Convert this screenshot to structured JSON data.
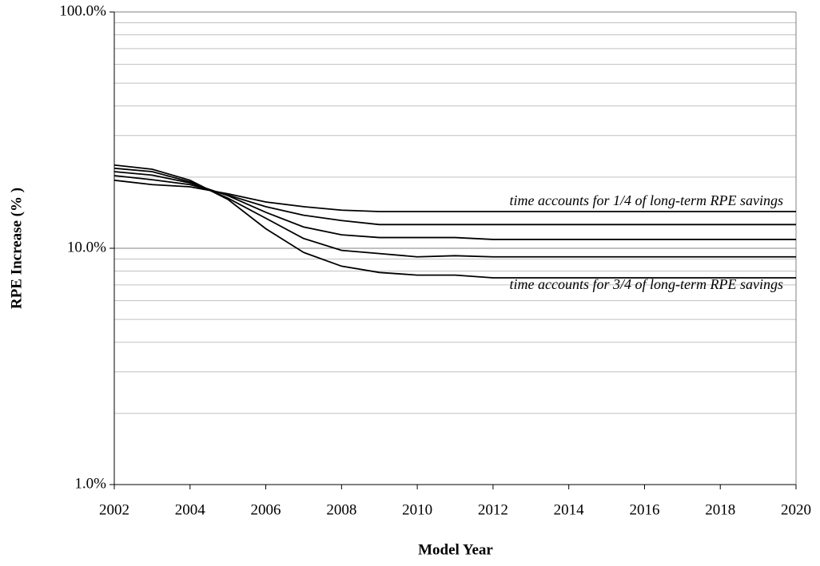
{
  "chart_data": {
    "type": "line",
    "x_label": "Model Year",
    "y_label": "RPE Increase (% )",
    "x": [
      2002,
      2003,
      2004,
      2005,
      2006,
      2007,
      2008,
      2009,
      2010,
      2011,
      2012,
      2013,
      2014,
      2015,
      2016,
      2017,
      2018,
      2019,
      2020
    ],
    "series": [
      {
        "color": "#000000",
        "values": [
          19.4,
          18.6,
          18.2,
          17.0,
          15.7,
          15.0,
          14.5,
          14.3,
          14.3,
          14.3,
          14.3,
          14.3,
          14.3,
          14.3,
          14.3,
          14.3,
          14.3,
          14.3,
          14.3
        ]
      },
      {
        "color": "#000000",
        "values": [
          20.3,
          19.5,
          18.6,
          16.8,
          15.0,
          13.8,
          13.1,
          12.6,
          12.6,
          12.6,
          12.6,
          12.6,
          12.6,
          12.6,
          12.6,
          12.6,
          12.6,
          12.6,
          12.6
        ]
      },
      {
        "color": "#000000",
        "values": [
          21.1,
          20.4,
          18.9,
          16.7,
          14.2,
          12.3,
          11.4,
          11.1,
          11.1,
          11.1,
          10.9,
          10.9,
          10.9,
          10.9,
          10.9,
          10.9,
          10.9,
          10.9,
          10.9
        ]
      },
      {
        "color": "#000000",
        "values": [
          21.8,
          21.1,
          19.1,
          16.3,
          13.4,
          11.0,
          9.8,
          9.5,
          9.2,
          9.3,
          9.2,
          9.2,
          9.2,
          9.2,
          9.2,
          9.2,
          9.2,
          9.2,
          9.2
        ]
      },
      {
        "color": "#000000",
        "values": [
          22.5,
          21.6,
          19.4,
          16.1,
          12.1,
          9.6,
          8.4,
          7.9,
          7.7,
          7.7,
          7.5,
          7.5,
          7.5,
          7.5,
          7.5,
          7.5,
          7.5,
          7.5,
          7.5
        ]
      }
    ],
    "annotations": [
      "time accounts for 1/4 of long-term RPE savings",
      "time accounts for 3/4 of long-term RPE savings"
    ],
    "xlim": [
      2002,
      2020
    ],
    "xticks": [
      2002,
      2004,
      2006,
      2008,
      2010,
      2012,
      2014,
      2016,
      2018,
      2020
    ],
    "ylim": [
      1,
      100
    ],
    "y_log": true,
    "yticks": [
      {
        "value": 1,
        "label": "1.0%"
      },
      {
        "value": 10,
        "label": "10.0%"
      },
      {
        "value": 100,
        "label": "100.0%"
      }
    ],
    "yminor_ticks": [
      2,
      3,
      4,
      5,
      6,
      7,
      8,
      9,
      20,
      30,
      40,
      50,
      60,
      70,
      80,
      90
    ],
    "grid": true
  }
}
